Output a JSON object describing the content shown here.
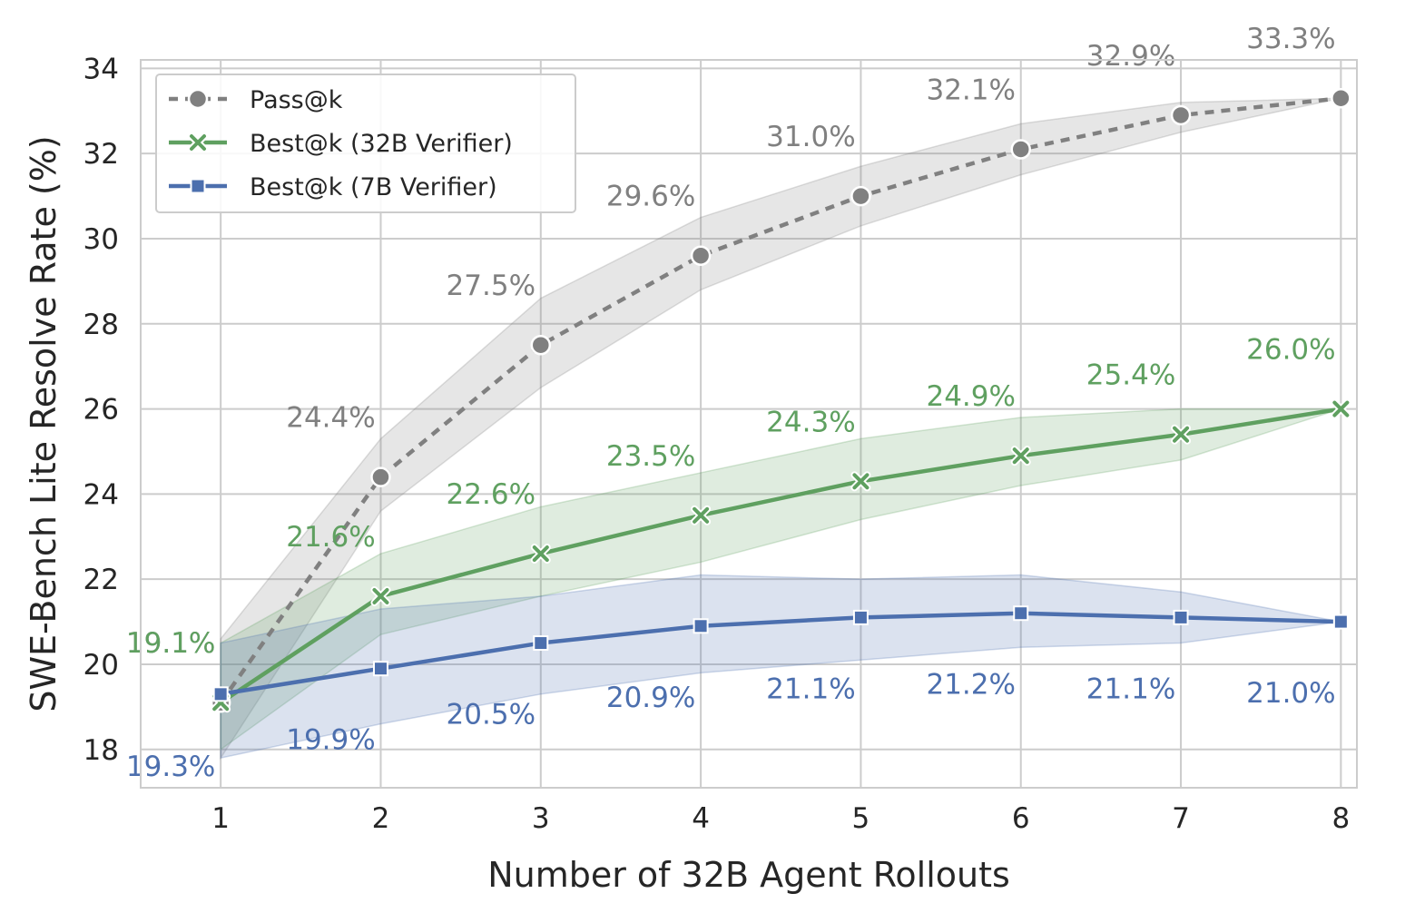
{
  "chart_data": {
    "type": "line",
    "xlabel": "Number of 32B Agent Rollouts",
    "ylabel": "SWE-Bench Lite Resolve Rate (%)",
    "x": [
      1,
      2,
      3,
      4,
      5,
      6,
      7,
      8
    ],
    "xlim": [
      0.5,
      8.1
    ],
    "ylim": [
      17.1,
      34.2
    ],
    "xticks": [
      1,
      2,
      3,
      4,
      5,
      6,
      7,
      8
    ],
    "yticks": [
      18,
      20,
      22,
      24,
      26,
      28,
      30,
      32,
      34
    ],
    "grid": true,
    "legend_position": "top-left",
    "series": [
      {
        "name": "Pass@k",
        "color": "#808080",
        "line_style": "dotted",
        "marker": "circle",
        "values": [
          19.1,
          24.4,
          27.5,
          29.6,
          31.0,
          32.1,
          32.9,
          33.3
        ],
        "band_low": [
          17.8,
          23.6,
          26.5,
          28.8,
          30.3,
          31.5,
          32.5,
          33.3
        ],
        "band_high": [
          20.6,
          25.3,
          28.6,
          30.5,
          31.7,
          32.7,
          33.2,
          33.3
        ],
        "labels": [
          "19.1%",
          "24.4%",
          "27.5%",
          "29.6%",
          "31.0%",
          "32.1%",
          "32.9%",
          "33.3%"
        ]
      },
      {
        "name": "Best@k (32B Verifier)",
        "color": "#5fa060",
        "line_style": "solid",
        "marker": "x",
        "values": [
          19.1,
          21.6,
          22.6,
          23.5,
          24.3,
          24.9,
          25.4,
          26.0
        ],
        "band_low": [
          18.0,
          20.7,
          21.6,
          22.4,
          23.4,
          24.2,
          24.8,
          26.0
        ],
        "band_high": [
          20.5,
          22.6,
          23.7,
          24.5,
          25.3,
          25.8,
          26.0,
          26.0
        ],
        "labels": [
          "19.1%",
          "21.6%",
          "22.6%",
          "23.5%",
          "24.3%",
          "24.9%",
          "25.4%",
          "26.0%"
        ]
      },
      {
        "name": "Best@k (7B Verifier)",
        "color": "#4c6fae",
        "line_style": "solid",
        "marker": "square",
        "values": [
          19.3,
          19.9,
          20.5,
          20.9,
          21.1,
          21.2,
          21.1,
          21.0
        ],
        "band_low": [
          17.8,
          18.6,
          19.3,
          19.8,
          20.1,
          20.4,
          20.5,
          21.0
        ],
        "band_high": [
          20.5,
          21.3,
          21.6,
          22.1,
          22.0,
          22.1,
          21.7,
          21.0
        ],
        "labels": [
          "19.3%",
          "19.9%",
          "20.5%",
          "20.9%",
          "21.1%",
          "21.2%",
          "21.1%",
          "21.0%"
        ]
      }
    ]
  }
}
